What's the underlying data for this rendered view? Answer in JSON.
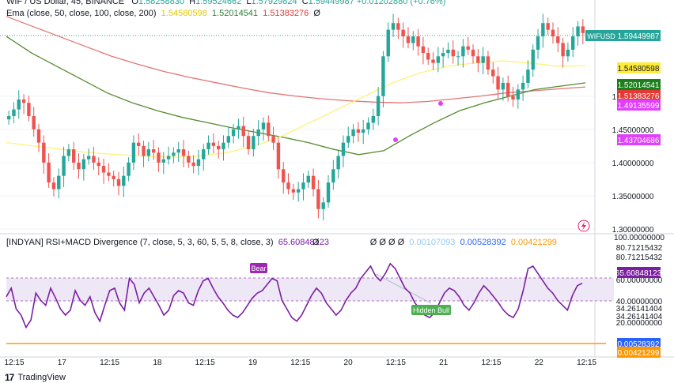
{
  "header": {
    "symbol_line": "WIF / US Dollar, 45, BINANCE",
    "ohlc": {
      "O": "1.58258830",
      "H": "1.59524662",
      "L": "1.57929824",
      "C": "1.59449987",
      "change": "+0.01202880 (+0.76%)"
    },
    "ema_line": "Ema (close, 50, close, 100, close, 200)",
    "ema_values": [
      "1.54580598",
      "1.52014541",
      "1.51383276"
    ],
    "ema_colors": [
      "#f5e642",
      "#2e7d32",
      "#e57373"
    ]
  },
  "indicator_header": {
    "title": "[INDYAN] RSI+MACD Divergence (7, close, 5, 3, 60, 5, 5, 8, close, 3)",
    "value": "65.60848123",
    "phi_marks": [
      "Ø",
      "Ø",
      "Ø",
      "Ø",
      "Ø"
    ],
    "macd_values": [
      "0.00107093",
      "0.00528392",
      "0.00421299"
    ]
  },
  "price_axis": {
    "ticks": [
      "1.50000000",
      "1.45000000",
      "1.40000000",
      "1.35000000",
      "1.30000000"
    ],
    "labels": [
      {
        "text": "WIFUSD",
        "value": "1.59449987",
        "bg": "#26a69a"
      },
      {
        "text": "1.54580598",
        "bg": "#ffeb3b"
      },
      {
        "text": "1.52014541",
        "bg": "#1b7f1b"
      },
      {
        "text": "1.51383276",
        "bg": "#e53935"
      },
      {
        "text": "1.49135599",
        "bg": "#e040fb"
      },
      {
        "text": "1.43704686",
        "bg": "#e040fb"
      }
    ]
  },
  "rsi_axis": {
    "ticks": [
      "100.00000000",
      "80.71215432",
      "80.71215432",
      "60.00000000",
      "40.00000000",
      "34.26141404",
      "34.26141404",
      "20.00000000"
    ],
    "labels": [
      {
        "text": "65.60848123",
        "bg": "#7b1fa2"
      },
      {
        "text": "0.00528392",
        "bg": "#2962ff"
      },
      {
        "text": "0.00421299",
        "bg": "#ff9800"
      }
    ]
  },
  "time_axis": [
    "12:15",
    "17",
    "12:15",
    "18",
    "12:15",
    "19",
    "12:15",
    "20",
    "12:15",
    "21",
    "12:15",
    "22",
    "12:15"
  ],
  "annotations": {
    "bear": "Bear",
    "hidden_bull": "Hidden Bull"
  },
  "footer": {
    "brand": "TradingView"
  },
  "chart_data": [
    {
      "type": "candlestick",
      "title": "WIF / US Dollar, 45, BINANCE",
      "ylim": [
        1.3,
        1.64
      ],
      "series_close": [
        1.47,
        1.48,
        1.495,
        1.49,
        1.47,
        1.45,
        1.43,
        1.4,
        1.37,
        1.36,
        1.38,
        1.41,
        1.42,
        1.4,
        1.39,
        1.405,
        1.41,
        1.4,
        1.395,
        1.385,
        1.38,
        1.375,
        1.365,
        1.38,
        1.4,
        1.43,
        1.425,
        1.41,
        1.42,
        1.415,
        1.4,
        1.405,
        1.41,
        1.415,
        1.42,
        1.41,
        1.4,
        1.395,
        1.405,
        1.42,
        1.43,
        1.425,
        1.42,
        1.43,
        1.44,
        1.45,
        1.455,
        1.44,
        1.42,
        1.44,
        1.45,
        1.46,
        1.44,
        1.43,
        1.39,
        1.37,
        1.36,
        1.355,
        1.36,
        1.37,
        1.38,
        1.36,
        1.33,
        1.34,
        1.37,
        1.39,
        1.41,
        1.43,
        1.44,
        1.45,
        1.445,
        1.45,
        1.46,
        1.47,
        1.5,
        1.56,
        1.6,
        1.61,
        1.6,
        1.59,
        1.58,
        1.59,
        1.575,
        1.565,
        1.555,
        1.55,
        1.56,
        1.565,
        1.57,
        1.56,
        1.56,
        1.575,
        1.57,
        1.56,
        1.55,
        1.56,
        1.54,
        1.53,
        1.51,
        1.52,
        1.5,
        1.495,
        1.51,
        1.52,
        1.54,
        1.57,
        1.59,
        1.61,
        1.6,
        1.59,
        1.58,
        1.56,
        1.57,
        1.59,
        1.605,
        1.595
      ],
      "ema50": [
        1.43,
        1.425,
        1.42,
        1.415,
        1.412,
        1.41,
        1.408,
        1.41,
        1.415,
        1.425,
        1.44,
        1.46,
        1.48,
        1.5,
        1.52,
        1.535,
        1.545,
        1.55,
        1.553,
        1.55,
        1.545,
        1.5458
      ],
      "ema100": [
        1.59,
        1.565,
        1.545,
        1.525,
        1.505,
        1.49,
        1.478,
        1.468,
        1.46,
        1.452,
        1.445,
        1.438,
        1.43,
        1.42,
        1.412,
        1.418,
        1.44,
        1.46,
        1.478,
        1.49,
        1.5,
        1.51,
        1.515,
        1.5201
      ],
      "ema200": [
        1.62,
        1.605,
        1.59,
        1.575,
        1.56,
        1.548,
        1.537,
        1.528,
        1.52,
        1.512,
        1.505,
        1.5,
        1.496,
        1.493,
        1.491,
        1.49,
        1.492,
        1.496,
        1.5,
        1.505,
        1.508,
        1.511,
        1.5138
      ]
    },
    {
      "type": "line",
      "title": "[INDYAN] RSI+MACD Divergence",
      "ylim": [
        20,
        100
      ],
      "levels": [
        80.71215432,
        60.0,
        40.0,
        34.26141404
      ],
      "rsi": [
        55,
        62,
        45,
        40,
        30,
        36,
        58,
        52,
        48,
        62,
        54,
        45,
        40,
        44,
        60,
        52,
        48,
        55,
        42,
        35,
        48,
        60,
        62,
        50,
        44,
        70,
        65,
        50,
        58,
        62,
        55,
        48,
        40,
        44,
        56,
        60,
        58,
        50,
        48,
        60,
        68,
        70,
        62,
        55,
        50,
        44,
        40,
        38,
        42,
        48,
        54,
        58,
        60,
        65,
        70,
        68,
        52,
        45,
        38,
        35,
        40,
        48,
        56,
        62,
        58,
        50,
        45,
        40,
        44,
        52,
        58,
        62,
        70,
        75,
        80,
        72,
        68,
        74,
        82,
        78,
        70,
        62,
        58,
        50,
        45,
        40,
        38,
        42,
        50,
        58,
        62,
        60,
        55,
        48,
        44,
        50,
        58,
        64,
        60,
        55,
        50,
        44,
        40,
        38,
        45,
        60,
        78,
        80,
        74,
        68,
        62,
        58,
        52,
        48,
        44,
        56,
        64,
        66
      ]
    }
  ]
}
